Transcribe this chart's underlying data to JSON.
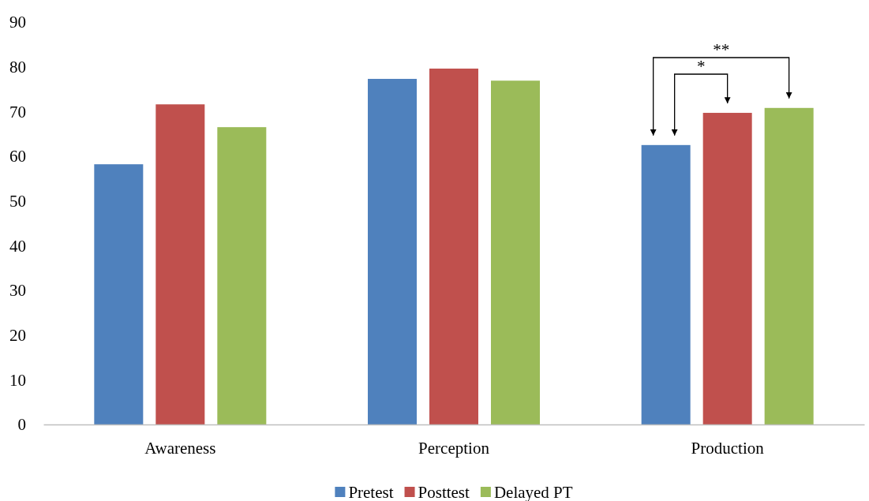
{
  "chart_data": {
    "type": "bar",
    "categories": [
      "Awareness",
      "Perception",
      "Production"
    ],
    "series": [
      {
        "name": "Pretest",
        "color": "#4f81bd",
        "values": [
          58.2,
          77.3,
          62.5
        ]
      },
      {
        "name": "Posttest",
        "color": "#c0504d",
        "values": [
          71.6,
          79.6,
          69.7
        ]
      },
      {
        "name": "Delayed PT",
        "color": "#9bbb59",
        "values": [
          66.5,
          76.9,
          70.8
        ]
      }
    ],
    "ylim": [
      0,
      90
    ],
    "yticks": [
      0,
      10,
      20,
      30,
      40,
      50,
      60,
      70,
      80,
      90
    ],
    "grid": false,
    "legend": "bottom",
    "annotations": [
      "**",
      "*"
    ]
  }
}
